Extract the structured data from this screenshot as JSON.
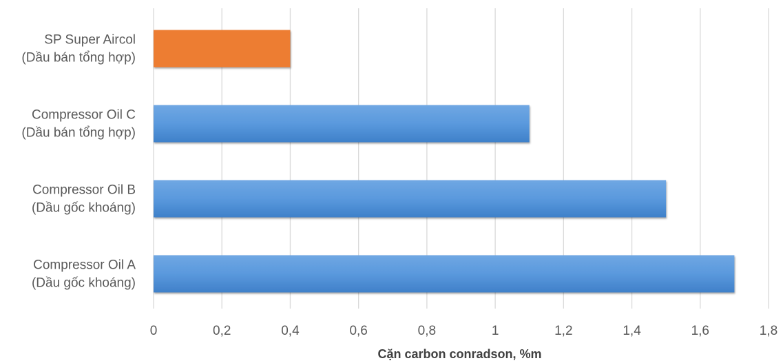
{
  "chart_data": {
    "type": "bar",
    "orientation": "horizontal",
    "categories": [
      [
        "Compressor Oil A",
        "(Dầu gốc khoáng)"
      ],
      [
        "Compressor Oil B",
        "(Dầu gốc khoáng)"
      ],
      [
        "Compressor Oil C",
        "(Dầu bán tổng hợp)"
      ],
      [
        "SP Super Aircol",
        "(Dầu bán tổng hợp)"
      ]
    ],
    "values": [
      1.7,
      1.5,
      1.1,
      0.4
    ],
    "colors": [
      "#4a8fd6",
      "#4a8fd6",
      "#4a8fd6",
      "#ed7d31"
    ],
    "xlim": [
      0,
      1.8
    ],
    "xticks": [
      0,
      0.2,
      0.4,
      0.6,
      0.8,
      1,
      1.2,
      1.4,
      1.6,
      1.8
    ],
    "xtick_labels": [
      "0",
      "0,2",
      "0,4",
      "0,6",
      "0,8",
      "1",
      "1,2",
      "1,4",
      "1,6",
      "1,8"
    ],
    "xlabel": "Cặn carbon conradson, %m",
    "title": "",
    "grid": true,
    "legend": "none"
  }
}
